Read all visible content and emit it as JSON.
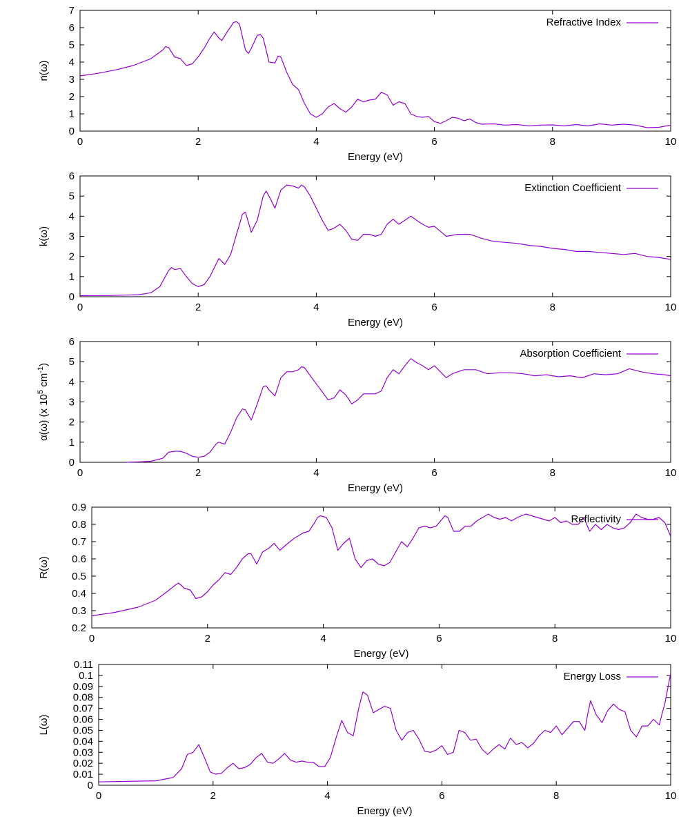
{
  "colors": {
    "series": "#9400d3",
    "axis": "#000000",
    "background": "#ffffff"
  },
  "chart_data": [
    {
      "type": "line",
      "title": "",
      "legend": "Refractive Index",
      "xlabel": "Energy (eV)",
      "ylabel": "n(ω)",
      "xlim": [
        0,
        10
      ],
      "ylim": [
        0,
        7
      ],
      "xticks": [
        "0",
        "2",
        "4",
        "6",
        "8",
        "10"
      ],
      "yticks": [
        "0",
        "1",
        "2",
        "3",
        "4",
        "5",
        "6",
        "7"
      ],
      "grid": false,
      "legend_position": "top-right",
      "series": [
        {
          "name": "Refractive Index",
          "x": [
            0,
            0.3,
            0.6,
            0.9,
            1.2,
            1.4,
            1.45,
            1.5,
            1.6,
            1.7,
            1.8,
            1.9,
            2.0,
            2.1,
            2.2,
            2.27,
            2.35,
            2.4,
            2.5,
            2.6,
            2.65,
            2.7,
            2.8,
            2.85,
            2.9,
            3.0,
            3.05,
            3.1,
            3.2,
            3.3,
            3.35,
            3.4,
            3.5,
            3.6,
            3.7,
            3.8,
            3.9,
            4.0,
            4.1,
            4.2,
            4.3,
            4.4,
            4.5,
            4.6,
            4.7,
            4.8,
            4.9,
            5.0,
            5.1,
            5.2,
            5.3,
            5.4,
            5.5,
            5.6,
            5.7,
            5.8,
            5.9,
            6.0,
            6.1,
            6.2,
            6.3,
            6.4,
            6.5,
            6.6,
            6.7,
            6.8,
            7.0,
            7.2,
            7.4,
            7.6,
            7.8,
            8.0,
            8.2,
            8.4,
            8.6,
            8.8,
            9.0,
            9.2,
            9.4,
            9.6,
            9.8,
            10.0
          ],
          "values": [
            3.2,
            3.35,
            3.55,
            3.8,
            4.2,
            4.7,
            4.9,
            4.85,
            4.3,
            4.2,
            3.8,
            3.9,
            4.3,
            4.8,
            5.4,
            5.75,
            5.4,
            5.25,
            5.8,
            6.3,
            6.35,
            6.2,
            4.7,
            4.5,
            4.8,
            5.55,
            5.6,
            5.4,
            4.0,
            3.95,
            4.35,
            4.3,
            3.4,
            2.7,
            2.4,
            1.6,
            1.0,
            0.8,
            1.0,
            1.4,
            1.6,
            1.3,
            1.1,
            1.4,
            1.85,
            1.7,
            1.8,
            1.85,
            2.25,
            2.1,
            1.5,
            1.7,
            1.6,
            1.0,
            0.85,
            0.8,
            0.85,
            0.55,
            0.45,
            0.6,
            0.8,
            0.75,
            0.6,
            0.7,
            0.5,
            0.4,
            0.42,
            0.35,
            0.38,
            0.3,
            0.35,
            0.36,
            0.3,
            0.38,
            0.3,
            0.42,
            0.35,
            0.4,
            0.35,
            0.2,
            0.22,
            0.35
          ]
        }
      ]
    },
    {
      "type": "line",
      "title": "",
      "legend": "Extinction Coefficient",
      "xlabel": "Energy (eV)",
      "ylabel": "k(ω)",
      "xlim": [
        0,
        10
      ],
      "ylim": [
        0,
        6
      ],
      "xticks": [
        "0",
        "2",
        "4",
        "6",
        "8",
        "10"
      ],
      "yticks": [
        "0",
        "1",
        "2",
        "3",
        "4",
        "5",
        "6"
      ],
      "grid": false,
      "legend_position": "top-right",
      "series": [
        {
          "name": "Extinction Coefficient",
          "x": [
            0,
            0.5,
            1.0,
            1.2,
            1.35,
            1.5,
            1.55,
            1.6,
            1.7,
            1.8,
            1.9,
            2.0,
            2.1,
            2.2,
            2.35,
            2.45,
            2.55,
            2.65,
            2.75,
            2.8,
            2.9,
            3.0,
            3.1,
            3.15,
            3.2,
            3.3,
            3.4,
            3.5,
            3.6,
            3.7,
            3.75,
            3.8,
            3.9,
            4.0,
            4.1,
            4.2,
            4.3,
            4.4,
            4.5,
            4.6,
            4.7,
            4.8,
            4.9,
            5.0,
            5.1,
            5.2,
            5.3,
            5.4,
            5.5,
            5.6,
            5.7,
            5.8,
            5.9,
            6.0,
            6.2,
            6.4,
            6.6,
            6.8,
            7.0,
            7.2,
            7.4,
            7.6,
            7.8,
            8.0,
            8.2,
            8.4,
            8.6,
            8.8,
            9.0,
            9.2,
            9.4,
            9.6,
            9.8,
            10.0
          ],
          "values": [
            0.05,
            0.06,
            0.1,
            0.2,
            0.5,
            1.3,
            1.45,
            1.35,
            1.4,
            1.0,
            0.65,
            0.5,
            0.6,
            1.0,
            1.9,
            1.6,
            2.1,
            3.1,
            4.1,
            4.2,
            3.2,
            3.8,
            5.0,
            5.25,
            5.0,
            4.4,
            5.3,
            5.55,
            5.5,
            5.4,
            5.55,
            5.45,
            5.0,
            4.4,
            3.8,
            3.3,
            3.4,
            3.6,
            3.3,
            2.85,
            2.8,
            3.1,
            3.1,
            3.0,
            3.1,
            3.6,
            3.85,
            3.6,
            3.8,
            4.0,
            3.8,
            3.6,
            3.45,
            3.5,
            3.0,
            3.1,
            3.1,
            2.9,
            2.75,
            2.7,
            2.65,
            2.55,
            2.5,
            2.4,
            2.35,
            2.25,
            2.25,
            2.2,
            2.15,
            2.1,
            2.15,
            2.0,
            1.95,
            1.85
          ]
        }
      ]
    },
    {
      "type": "line",
      "title": "",
      "legend": "Absorption Coefficient",
      "xlabel": "Energy (eV)",
      "ylabel_main": "α(ω) (x 10",
      "ylabel_exp1": "5",
      "ylabel_mid": " cm",
      "ylabel_exp2": "-1",
      "ylabel_end": ")",
      "xlim": [
        0,
        10
      ],
      "ylim": [
        0,
        6
      ],
      "xticks": [
        "0",
        "2",
        "4",
        "6",
        "8",
        "10"
      ],
      "yticks": [
        "0",
        "1",
        "2",
        "3",
        "4",
        "5",
        "6"
      ],
      "grid": false,
      "legend_position": "top-right",
      "series": [
        {
          "name": "Absorption Coefficient",
          "x": [
            0.78,
            1.0,
            1.2,
            1.4,
            1.5,
            1.6,
            1.7,
            1.8,
            1.9,
            2.0,
            2.1,
            2.2,
            2.3,
            2.35,
            2.45,
            2.55,
            2.65,
            2.75,
            2.8,
            2.9,
            3.0,
            3.1,
            3.15,
            3.2,
            3.3,
            3.4,
            3.5,
            3.6,
            3.7,
            3.75,
            3.8,
            3.9,
            4.0,
            4.1,
            4.2,
            4.3,
            4.4,
            4.5,
            4.6,
            4.7,
            4.8,
            4.9,
            5.0,
            5.1,
            5.2,
            5.3,
            5.4,
            5.5,
            5.6,
            5.7,
            5.8,
            5.9,
            6.0,
            6.1,
            6.2,
            6.3,
            6.5,
            6.7,
            6.9,
            7.1,
            7.3,
            7.5,
            7.7,
            7.9,
            8.1,
            8.3,
            8.5,
            8.7,
            8.9,
            9.1,
            9.3,
            9.5,
            9.7,
            9.9,
            10.0
          ],
          "values": [
            0.0,
            0.02,
            0.05,
            0.2,
            0.5,
            0.55,
            0.55,
            0.45,
            0.3,
            0.25,
            0.3,
            0.5,
            0.9,
            1.0,
            0.9,
            1.5,
            2.2,
            2.65,
            2.6,
            2.1,
            2.9,
            3.75,
            3.8,
            3.6,
            3.3,
            4.2,
            4.5,
            4.5,
            4.6,
            4.75,
            4.7,
            4.3,
            3.9,
            3.5,
            3.1,
            3.2,
            3.6,
            3.35,
            2.9,
            3.1,
            3.4,
            3.4,
            3.4,
            3.55,
            4.2,
            4.6,
            4.4,
            4.8,
            5.15,
            4.95,
            4.8,
            4.6,
            4.8,
            4.5,
            4.2,
            4.4,
            4.6,
            4.6,
            4.4,
            4.45,
            4.45,
            4.4,
            4.3,
            4.35,
            4.25,
            4.3,
            4.2,
            4.4,
            4.35,
            4.4,
            4.65,
            4.5,
            4.4,
            4.35,
            4.3
          ]
        }
      ]
    },
    {
      "type": "line",
      "title": "",
      "legend": "Reflectivity",
      "xlabel": "Energy (eV)",
      "ylabel": "R(ω)",
      "xlim": [
        0,
        10
      ],
      "ylim": [
        0.2,
        0.9
      ],
      "xticks": [
        "0",
        "2",
        "4",
        "6",
        "8",
        "10"
      ],
      "yticks": [
        "0.2",
        "0.3",
        "0.4",
        "0.5",
        "0.6",
        "0.7",
        "0.8",
        "0.9"
      ],
      "grid": false,
      "legend_position": "top-right",
      "series": [
        {
          "name": "Reflectivity",
          "x": [
            0,
            0.4,
            0.8,
            1.1,
            1.3,
            1.45,
            1.5,
            1.6,
            1.7,
            1.8,
            1.9,
            2.0,
            2.1,
            2.2,
            2.3,
            2.4,
            2.5,
            2.6,
            2.7,
            2.75,
            2.85,
            2.95,
            3.05,
            3.15,
            3.25,
            3.35,
            3.5,
            3.65,
            3.75,
            3.85,
            3.9,
            3.95,
            4.05,
            4.15,
            4.25,
            4.35,
            4.45,
            4.55,
            4.65,
            4.75,
            4.85,
            4.95,
            5.05,
            5.15,
            5.25,
            5.35,
            5.45,
            5.55,
            5.65,
            5.75,
            5.85,
            5.95,
            6.05,
            6.1,
            6.15,
            6.25,
            6.35,
            6.45,
            6.55,
            6.65,
            6.75,
            6.85,
            6.95,
            7.05,
            7.15,
            7.25,
            7.35,
            7.5,
            7.6,
            7.7,
            7.8,
            7.9,
            8.0,
            8.1,
            8.2,
            8.3,
            8.4,
            8.5,
            8.6,
            8.7,
            8.8,
            8.9,
            9.0,
            9.1,
            9.2,
            9.3,
            9.4,
            9.5,
            9.6,
            9.7,
            9.8,
            9.9,
            10.0
          ],
          "values": [
            0.27,
            0.29,
            0.32,
            0.36,
            0.41,
            0.45,
            0.46,
            0.43,
            0.42,
            0.37,
            0.38,
            0.41,
            0.45,
            0.48,
            0.52,
            0.51,
            0.55,
            0.6,
            0.63,
            0.63,
            0.57,
            0.64,
            0.66,
            0.69,
            0.65,
            0.68,
            0.72,
            0.75,
            0.76,
            0.81,
            0.84,
            0.85,
            0.84,
            0.78,
            0.65,
            0.69,
            0.72,
            0.6,
            0.55,
            0.59,
            0.6,
            0.57,
            0.56,
            0.58,
            0.64,
            0.7,
            0.67,
            0.72,
            0.78,
            0.79,
            0.78,
            0.79,
            0.83,
            0.85,
            0.84,
            0.76,
            0.76,
            0.79,
            0.79,
            0.82,
            0.84,
            0.86,
            0.84,
            0.83,
            0.84,
            0.82,
            0.84,
            0.86,
            0.85,
            0.84,
            0.83,
            0.82,
            0.84,
            0.81,
            0.82,
            0.8,
            0.8,
            0.84,
            0.76,
            0.8,
            0.77,
            0.8,
            0.78,
            0.77,
            0.78,
            0.81,
            0.86,
            0.84,
            0.83,
            0.83,
            0.84,
            0.81,
            0.73
          ]
        }
      ]
    },
    {
      "type": "line",
      "title": "",
      "legend": "Energy Loss",
      "xlabel": "Energy (eV)",
      "ylabel": "L(ω)",
      "xlim": [
        0,
        10
      ],
      "ylim": [
        0,
        0.11
      ],
      "xticks": [
        "0",
        "2",
        "4",
        "6",
        "8",
        "10"
      ],
      "yticks": [
        "0",
        "0.01",
        "0.02",
        "0.03",
        "0.04",
        "0.05",
        "0.06",
        "0.07",
        "0.08",
        "0.09",
        "0.1",
        "0.11"
      ],
      "grid": false,
      "legend_position": "top-right",
      "series": [
        {
          "name": "Energy Loss",
          "x": [
            0,
            0.5,
            1.0,
            1.3,
            1.45,
            1.55,
            1.65,
            1.75,
            1.85,
            1.95,
            2.05,
            2.15,
            2.25,
            2.35,
            2.45,
            2.55,
            2.65,
            2.75,
            2.85,
            2.95,
            3.05,
            3.15,
            3.25,
            3.35,
            3.45,
            3.55,
            3.65,
            3.75,
            3.85,
            3.95,
            4.05,
            4.15,
            4.25,
            4.35,
            4.45,
            4.55,
            4.62,
            4.7,
            4.8,
            4.9,
            5.0,
            5.1,
            5.2,
            5.3,
            5.4,
            5.5,
            5.6,
            5.7,
            5.8,
            5.9,
            6.0,
            6.1,
            6.2,
            6.3,
            6.4,
            6.5,
            6.6,
            6.7,
            6.8,
            6.9,
            7.0,
            7.1,
            7.2,
            7.3,
            7.4,
            7.5,
            7.6,
            7.7,
            7.8,
            7.9,
            8.0,
            8.1,
            8.2,
            8.3,
            8.4,
            8.5,
            8.55,
            8.6,
            8.7,
            8.8,
            8.9,
            9.0,
            9.1,
            9.2,
            9.3,
            9.4,
            9.5,
            9.6,
            9.7,
            9.8,
            9.9,
            10.0
          ],
          "values": [
            0.003,
            0.0035,
            0.004,
            0.007,
            0.015,
            0.028,
            0.03,
            0.037,
            0.025,
            0.012,
            0.01,
            0.011,
            0.016,
            0.02,
            0.015,
            0.016,
            0.019,
            0.025,
            0.029,
            0.021,
            0.02,
            0.024,
            0.029,
            0.023,
            0.021,
            0.022,
            0.021,
            0.021,
            0.017,
            0.017,
            0.025,
            0.043,
            0.059,
            0.048,
            0.045,
            0.071,
            0.085,
            0.082,
            0.066,
            0.069,
            0.072,
            0.07,
            0.05,
            0.041,
            0.048,
            0.05,
            0.042,
            0.031,
            0.03,
            0.032,
            0.036,
            0.028,
            0.03,
            0.05,
            0.048,
            0.041,
            0.042,
            0.033,
            0.028,
            0.033,
            0.037,
            0.033,
            0.043,
            0.037,
            0.039,
            0.034,
            0.038,
            0.045,
            0.05,
            0.048,
            0.054,
            0.046,
            0.052,
            0.058,
            0.058,
            0.05,
            0.065,
            0.077,
            0.064,
            0.057,
            0.068,
            0.074,
            0.069,
            0.067,
            0.05,
            0.044,
            0.054,
            0.054,
            0.06,
            0.055,
            0.075,
            0.102
          ]
        }
      ]
    }
  ]
}
